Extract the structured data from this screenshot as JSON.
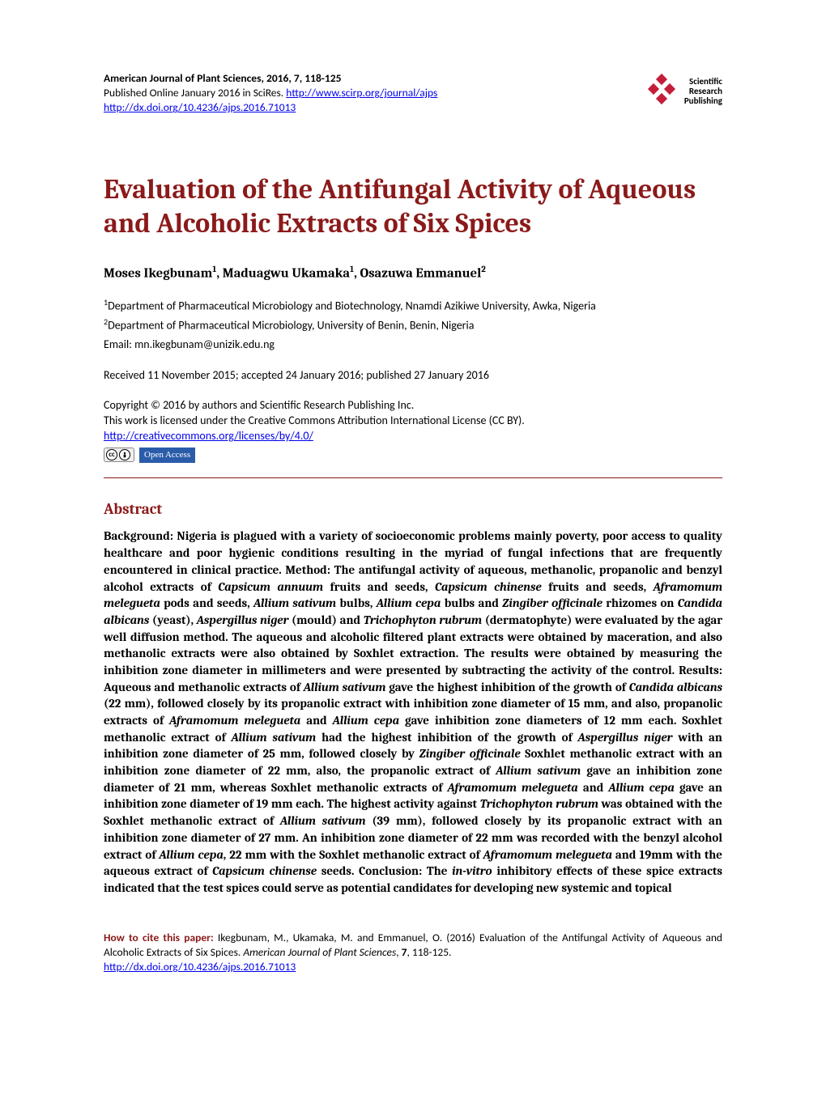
{
  "colors": {
    "accent": "#8b1a1a",
    "link": "#0000ee",
    "oa_bg": "#2a5caa",
    "logo_red": "#c41e3a"
  },
  "header": {
    "journal_line": "American Journal of Plant Sciences, 2016, 7, 118-125",
    "pub_prefix": "Published Online January 2016 in SciRes. ",
    "pub_link": "http://www.scirp.org/journal/ajps",
    "doi_link": "http://dx.doi.org/10.4236/ajps.2016.71013",
    "logo": {
      "line1": "Scientific",
      "line2": "Research",
      "line3": "Publishing"
    }
  },
  "title": "Evaluation of the Antifungal Activity of Aqueous and Alcoholic Extracts of Six Spices",
  "authors": {
    "a1_name": "Moses Ikegbunam",
    "a1_sup": "1",
    "a2_name": "Maduagwu Ukamaka",
    "a2_sup": "1",
    "a3_name": "Osazuwa Emmanuel",
    "a3_sup": "2"
  },
  "affiliations": {
    "aff1_sup": "1",
    "aff1_text": "Department of Pharmaceutical Microbiology and Biotechnology, Nnamdi Azikiwe University, Awka, Nigeria",
    "aff2_sup": "2",
    "aff2_text": "Department of Pharmaceutical Microbiology, University of Benin, Benin, Nigeria"
  },
  "email": "Email: mn.ikegbunam@unizik.edu.ng",
  "dates": "Received 11 November 2015; accepted 24 January 2016; published 27 January 2016",
  "copyright": {
    "line1": "Copyright © 2016 by authors and Scientific Research Publishing Inc.",
    "line2": "This work is licensed under the Creative Commons Attribution International License (CC BY).",
    "cc_link": "http://creativecommons.org/licenses/by/4.0/",
    "oa_label": "Open Access"
  },
  "abstract": {
    "heading": "Abstract",
    "segments": [
      {
        "t": "Background: Nigeria is plagued with a variety of socioeconomic problems mainly poverty, poor access to quality healthcare and poor hygienic conditions resulting in the myriad of fungal infections that are frequently encountered in clinical practice. Method: The antifungal activity of aqueous, methanolic, propanolic and benzyl alcohol extracts of "
      },
      {
        "t": "Capsicum annuum",
        "i": true
      },
      {
        "t": " fruits and seeds, "
      },
      {
        "t": "Capsicum chinense",
        "i": true
      },
      {
        "t": " fruits and seeds, "
      },
      {
        "t": "Aframomum melegueta",
        "i": true
      },
      {
        "t": " pods and seeds, "
      },
      {
        "t": "Allium sativum",
        "i": true
      },
      {
        "t": " bulbs, "
      },
      {
        "t": "Allium cepa",
        "i": true
      },
      {
        "t": " bulbs and "
      },
      {
        "t": "Zingiber officinale",
        "i": true
      },
      {
        "t": " rhizomes on "
      },
      {
        "t": "Candida albicans",
        "i": true
      },
      {
        "t": " (yeast), "
      },
      {
        "t": "Aspergillus niger",
        "i": true
      },
      {
        "t": " (mould) and "
      },
      {
        "t": "Trichophyton rubrum",
        "i": true
      },
      {
        "t": " (dermatophyte) were evaluated by the agar well diffusion method. The aqueous and alcoholic filtered plant extracts were obtained by maceration, and also methanolic extracts were also obtained by Soxhlet extraction. The results were obtained by measuring the inhibition zone diameter in millimeters and were presented by subtracting the activity of the control. Results: Aqueous and methanolic extracts of "
      },
      {
        "t": "Allium sativum",
        "i": true
      },
      {
        "t": " gave the highest inhibition of the growth of "
      },
      {
        "t": "Candida albicans",
        "i": true
      },
      {
        "t": " (22 mm), followed closely by its propanolic extract with inhibition zone diameter of 15 mm, and also, propanolic extracts of "
      },
      {
        "t": "Aframomum melegueta",
        "i": true
      },
      {
        "t": " and "
      },
      {
        "t": "Allium cepa",
        "i": true
      },
      {
        "t": " gave inhibition zone diameters of 12 mm each. Soxhlet methanolic extract of "
      },
      {
        "t": "Allium sativum",
        "i": true
      },
      {
        "t": " had the highest inhibition of the growth of "
      },
      {
        "t": "Aspergillus niger",
        "i": true
      },
      {
        "t": " with an inhibition zone diameter of 25 mm, followed closely by "
      },
      {
        "t": "Zingiber officinale",
        "i": true
      },
      {
        "t": " Soxhlet methanolic extract with an inhibition zone diameter of 22 mm, also, the propanolic extract of "
      },
      {
        "t": "Allium sativum",
        "i": true
      },
      {
        "t": " gave an inhibition zone diameter of 21 mm, whereas Soxhlet methanolic extracts of "
      },
      {
        "t": "Aframomum melegueta",
        "i": true
      },
      {
        "t": " and "
      },
      {
        "t": "Allium cepa",
        "i": true
      },
      {
        "t": " gave an inhibition zone diameter of 19 mm each. The highest activity against "
      },
      {
        "t": "Trichophyton rubrum",
        "i": true
      },
      {
        "t": " was obtained with the Soxhlet methanolic extract of "
      },
      {
        "t": "Allium sativum",
        "i": true
      },
      {
        "t": " (39 mm), followed closely by its propanolic extract with an inhibition zone diameter of 27 mm. An inhibition zone diameter of 22 mm was recorded with the benzyl alcohol extract of "
      },
      {
        "t": "Allium cepa",
        "i": true
      },
      {
        "t": ", 22 mm with the Soxhlet methanolic extract of "
      },
      {
        "t": "Aframomum melegueta",
        "i": true
      },
      {
        "t": " and 19mm with the aqueous extract of "
      },
      {
        "t": "Capsicum chinense",
        "i": true
      },
      {
        "t": " seeds. Conclusion: The "
      },
      {
        "t": "in-vitro",
        "i": true
      },
      {
        "t": " inhibitory effects of these spice extracts indicated that the test spices could serve as potential candidates for developing new systemic and topical"
      }
    ]
  },
  "citation": {
    "label": "How to cite this paper: ",
    "text_before_journal": "Ikegbunam, M., Ukamaka, M. and Emmanuel, O. (2016) Evaluation of the Antifungal Activity of Aqueous and Alcoholic Extracts of Six Spices. ",
    "journal": "American Journal of Plant Sciences",
    "text_after_journal": ", ",
    "volume": "7",
    "pages": ", 118-125.",
    "doi_link": "http://dx.doi.org/10.4236/ajps.2016.71013"
  }
}
